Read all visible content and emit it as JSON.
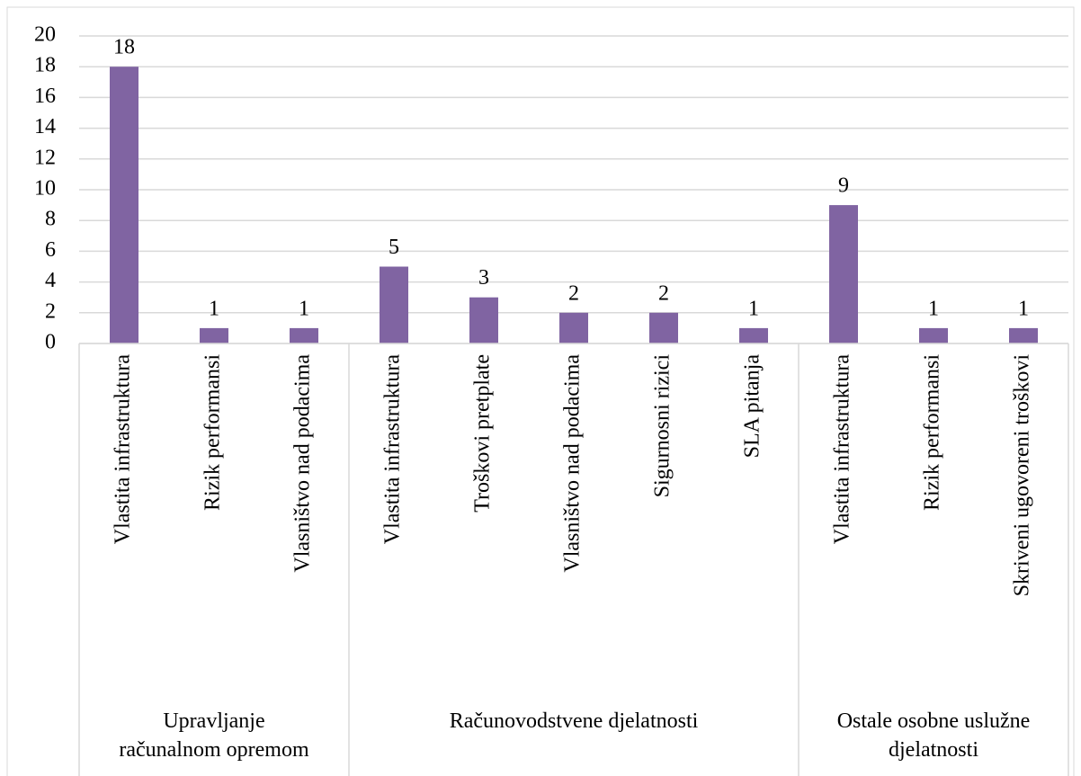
{
  "chart_data": {
    "type": "bar",
    "color": "#8064a2",
    "grid": true,
    "ylim": [
      0,
      20
    ],
    "yticks": [
      0,
      2,
      4,
      6,
      8,
      10,
      12,
      14,
      16,
      18,
      20
    ],
    "groups": [
      {
        "name": "Upravljanje\nračunalnom opremom",
        "categories": [
          "Vlastita infrastruktura",
          "Rizik performansi",
          "Vlasništvo nad podacima"
        ],
        "values": [
          18,
          1,
          1
        ]
      },
      {
        "name": "Računovodstvene djelatnosti",
        "categories": [
          "Vlastita infrastruktura",
          "Troškovi pretplate",
          "Vlasništvo nad podacima",
          "Sigurnosni rizici",
          "SLA pitanja"
        ],
        "values": [
          5,
          3,
          2,
          2,
          1
        ]
      },
      {
        "name": "Ostale osobne uslužne\ndjelatnosti",
        "categories": [
          "Vlastita infrastruktura",
          "Rizik performansi",
          "Skriveni ugovoreni troškovi"
        ],
        "values": [
          9,
          1,
          1
        ]
      }
    ]
  }
}
